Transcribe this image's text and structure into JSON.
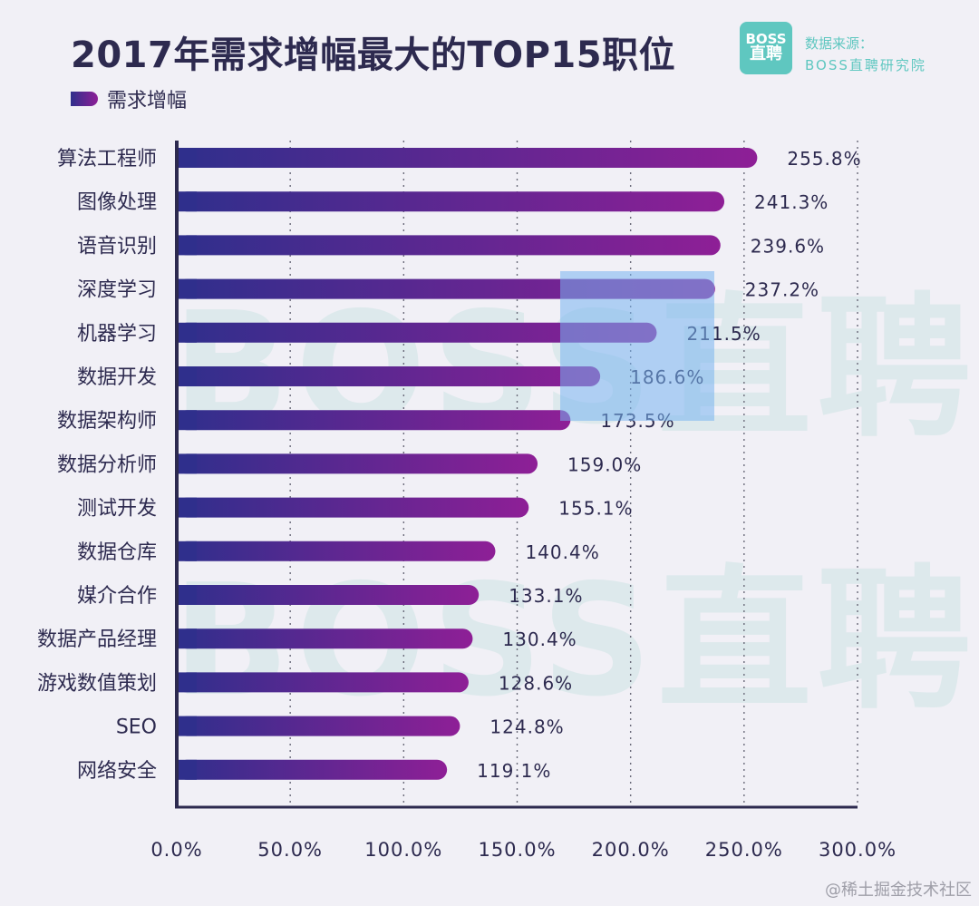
{
  "header": {
    "title": "2017年需求增幅最大的TOP15职位",
    "legend_label": "需求增幅",
    "logo_top": "BOSS",
    "logo_bottom": "直聘",
    "source_line1": "数据来源：",
    "source_line2": "BOSS直聘研究院"
  },
  "watermark": {
    "text": "BOSS直聘",
    "platform": "@稀土掘金技术社区"
  },
  "colors": {
    "bar_start": "#2f2f8c",
    "bar_end": "#8e1f96",
    "axis": "#2d2a4f",
    "text": "#2d2a4f",
    "brand": "#5fc7c0"
  },
  "chart_data": {
    "type": "bar",
    "orientation": "horizontal",
    "categories": [
      "算法工程师",
      "图像处理",
      "语音识别",
      "深度学习",
      "机器学习",
      "数据开发",
      "数据架构师",
      "数据分析师",
      "测试开发",
      "数据仓库",
      "媒介合作",
      "数据产品经理",
      "游戏数值策划",
      "SEO",
      "网络安全"
    ],
    "values": [
      255.8,
      241.3,
      239.6,
      237.2,
      211.5,
      186.6,
      173.5,
      159.0,
      155.1,
      140.4,
      133.1,
      130.4,
      128.6,
      124.8,
      119.1
    ],
    "value_labels": [
      "255.8%",
      "241.3%",
      "239.6%",
      "237.2%",
      "211.5%",
      "186.6%",
      "173.5%",
      "159.0%",
      "155.1%",
      "140.4%",
      "133.1%",
      "130.4%",
      "128.6%",
      "124.8%",
      "119.1%"
    ],
    "series": [
      {
        "name": "需求增幅"
      }
    ],
    "xlim": [
      0,
      300
    ],
    "xticks": [
      0,
      50,
      100,
      150,
      200,
      250,
      300
    ],
    "xtick_labels": [
      "0.0%",
      "50.0%",
      "100.0%",
      "150.0%",
      "200.0%",
      "250.0%",
      "300.0%"
    ],
    "grid": "vertical dotted",
    "legend": "top-left"
  }
}
